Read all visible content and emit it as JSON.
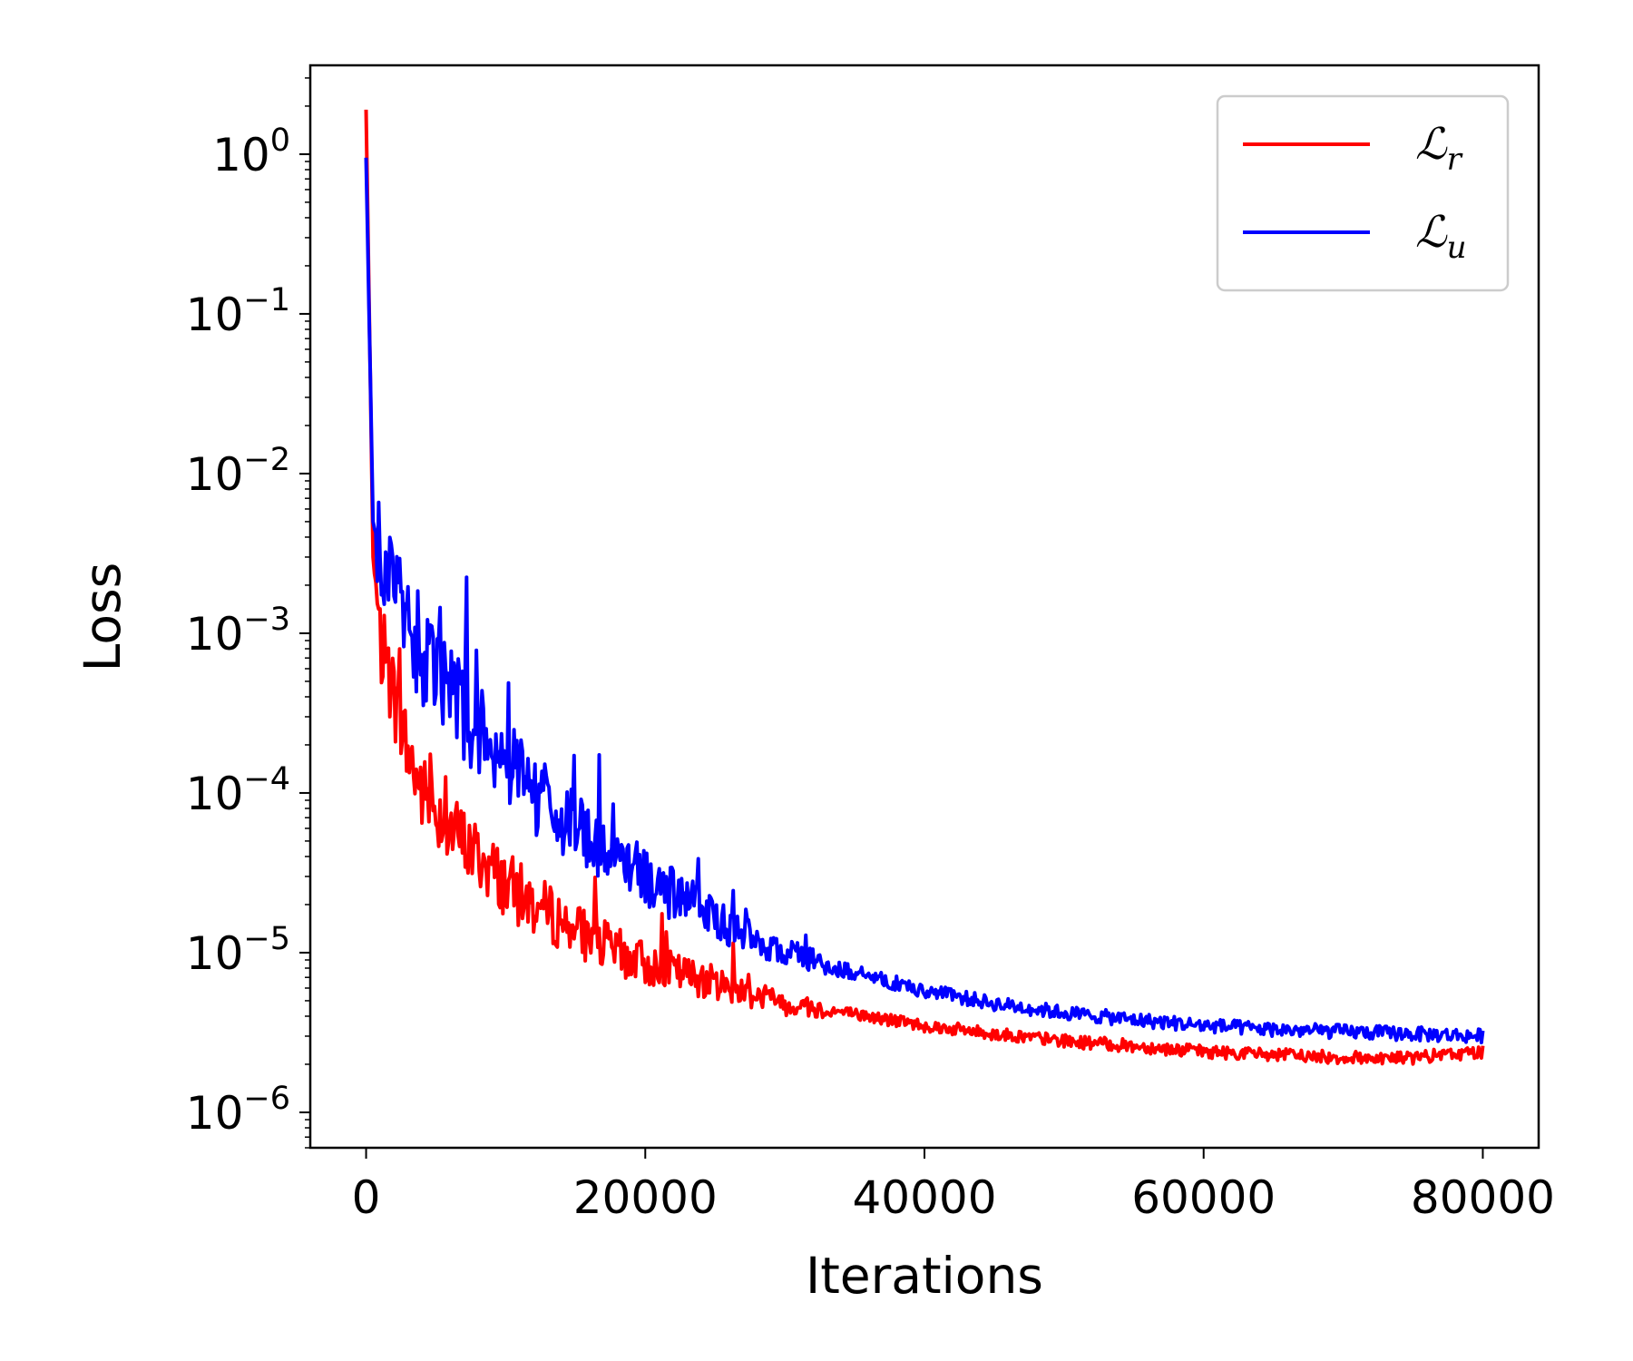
{
  "chart_data": {
    "type": "line",
    "xlabel": "Iterations",
    "ylabel": "Loss",
    "yscale": "log",
    "xlim": [
      -4000,
      84000
    ],
    "ylim": [
      6e-07,
      3.6
    ],
    "x_ticks": [
      0,
      20000,
      40000,
      60000,
      80000
    ],
    "x_tick_labels": [
      "0",
      "20000",
      "40000",
      "60000",
      "80000"
    ],
    "y_ticks": [
      {
        "base": "10",
        "exp": "0",
        "value": 1
      },
      {
        "base": "10",
        "exp": "−1",
        "value": 0.1
      },
      {
        "base": "10",
        "exp": "−2",
        "value": 0.01
      },
      {
        "base": "10",
        "exp": "−3",
        "value": 0.001
      },
      {
        "base": "10",
        "exp": "−4",
        "value": 0.0001
      },
      {
        "base": "10",
        "exp": "−5",
        "value": 1e-05
      },
      {
        "base": "10",
        "exp": "−6",
        "value": 1e-06
      }
    ],
    "legend_position": "top-right",
    "grid": false,
    "series": [
      {
        "name": "ℒr",
        "legend_main": "ℒ",
        "legend_sub": "r",
        "color": "#ff0000",
        "x": [
          0,
          500,
          1000,
          2000,
          3000,
          4000,
          5000,
          6000,
          8000,
          10000,
          12000,
          15000,
          18000,
          20000,
          25000,
          30000,
          35000,
          40000,
          45000,
          50000,
          55000,
          60000,
          65000,
          70000,
          75000,
          80000
        ],
        "y": [
          1.9,
          0.003,
          0.0009,
          0.0004,
          0.00018,
          0.0001,
          8e-05,
          6e-05,
          4e-05,
          2.7e-05,
          2e-05,
          1.4e-05,
          1e-05,
          8.5e-06,
          6.5e-06,
          4.8e-06,
          4.1e-06,
          3.5e-06,
          3.1e-06,
          2.8e-06,
          2.6e-06,
          2.4e-06,
          2.3e-06,
          2.2e-06,
          2.2e-06,
          2.4e-06
        ]
      },
      {
        "name": "ℒu",
        "legend_main": "ℒ",
        "legend_sub": "u",
        "color": "#0000ff",
        "x": [
          0,
          500,
          1000,
          2000,
          3000,
          4000,
          5000,
          6000,
          8000,
          10000,
          12000,
          15000,
          18000,
          20000,
          25000,
          30000,
          35000,
          40000,
          45000,
          50000,
          55000,
          60000,
          65000,
          70000,
          75000,
          80000
        ],
        "y": [
          0.95,
          0.005,
          0.003,
          0.0016,
          0.0011,
          0.00075,
          0.0005,
          0.0004,
          0.00025,
          0.00016,
          0.0001,
          6e-05,
          4e-05,
          3e-05,
          1.6e-05,
          1e-05,
          7.5e-06,
          5.8e-06,
          4.8e-06,
          4.2e-06,
          3.8e-06,
          3.5e-06,
          3.3e-06,
          3.2e-06,
          3.1e-06,
          3e-06
        ]
      }
    ]
  }
}
